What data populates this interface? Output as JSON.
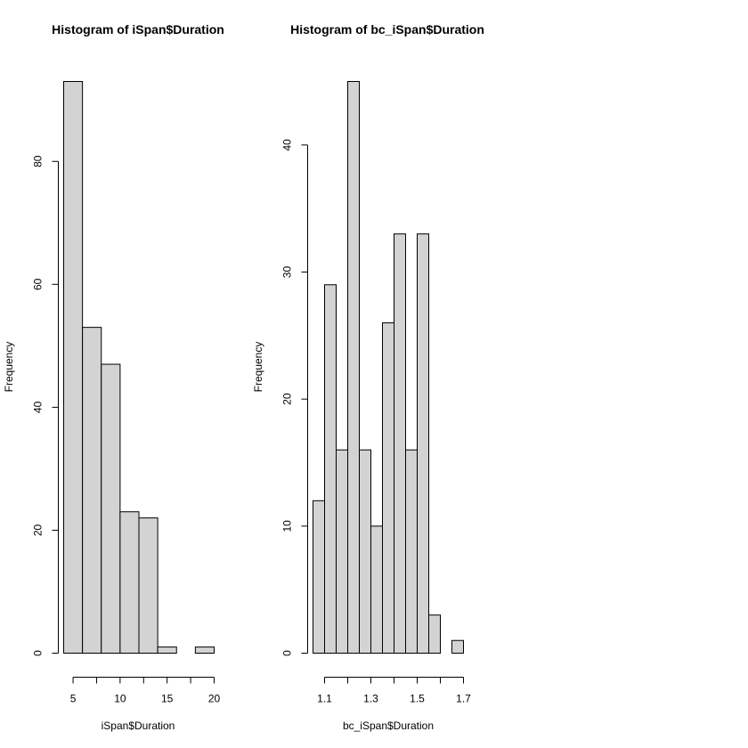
{
  "chart_data": [
    {
      "type": "bar",
      "title": "Histogram of iSpan$Duration",
      "xlabel": "iSpan$Duration",
      "ylabel": "Frequency",
      "bin_edges": [
        4,
        6,
        8,
        10,
        12,
        14,
        16,
        18,
        20
      ],
      "values": [
        93,
        53,
        47,
        23,
        22,
        1,
        0,
        1
      ],
      "xticks": [
        "5",
        "10",
        "15",
        "20"
      ],
      "yticks": [
        "0",
        "20",
        "40",
        "60",
        "80"
      ],
      "xlim": [
        4,
        20
      ],
      "ylim": [
        0,
        93
      ],
      "grid": false
    },
    {
      "type": "bar",
      "title": "Histogram of bc_iSpan$Duration",
      "xlabel": "bc_iSpan$Duration",
      "ylabel": "Frequency",
      "bin_edges": [
        1.05,
        1.1,
        1.15,
        1.2,
        1.25,
        1.3,
        1.35,
        1.4,
        1.45,
        1.5,
        1.55,
        1.6,
        1.65,
        1.7
      ],
      "values": [
        12,
        29,
        16,
        45,
        16,
        10,
        26,
        33,
        16,
        33,
        3,
        0,
        1
      ],
      "xticks": [
        "1.1",
        "1.3",
        "1.5",
        "1.7"
      ],
      "yticks": [
        "0",
        "10",
        "20",
        "30",
        "40"
      ],
      "xlim": [
        1.05,
        1.7
      ],
      "ylim": [
        0,
        45
      ],
      "grid": false
    }
  ]
}
